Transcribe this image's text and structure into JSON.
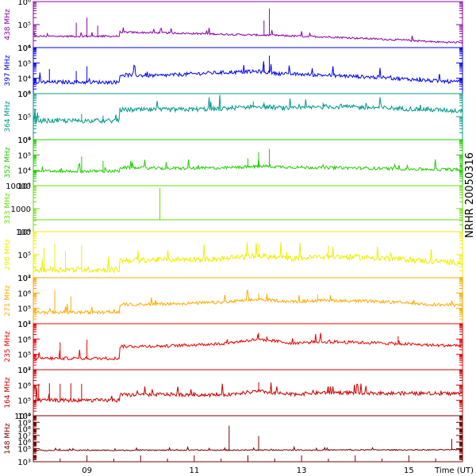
{
  "chart_data": {
    "type": "line",
    "side_title": "NRHR 20050316",
    "xlabel": "Time (UT)",
    "xlim": [
      8.0,
      16.0
    ],
    "x_ticks": [
      {
        "value": 9,
        "label": "09"
      },
      {
        "value": 11,
        "label": "11"
      },
      {
        "value": 13,
        "label": "13"
      },
      {
        "value": 15,
        "label": "15"
      }
    ],
    "yscale": "log",
    "series": [
      {
        "name": "438 MHz",
        "color": "#8800aa",
        "ylim": [
          10000,
          1000000
        ],
        "ticks": [
          {
            "v": 10000,
            "t": "10⁴"
          },
          {
            "v": 100000,
            "t": "10⁵"
          },
          {
            "v": 1000000,
            "t": "10⁶"
          }
        ],
        "x": [
          8.0,
          9.6,
          9.61,
          10.5,
          11.5,
          12.4,
          13.5,
          14.2,
          15.0,
          15.5,
          16.0
        ],
        "y": [
          30000,
          30000,
          45000,
          42000,
          37000,
          33000,
          28000,
          24000,
          20000,
          17000,
          16000
        ],
        "noise": 0.04,
        "spikes": [
          [
            8.8,
            120000
          ],
          [
            9.0,
            200000
          ],
          [
            9.2,
            90000
          ],
          [
            12.4,
            500000
          ],
          [
            12.3,
            150000
          ]
        ]
      },
      {
        "name": "397 MHz",
        "color": "#0000ee",
        "ylim": [
          1000,
          1000000
        ],
        "ticks": [
          {
            "v": 1000,
            "t": "10³"
          },
          {
            "v": 10000,
            "t": "10⁴"
          },
          {
            "v": 100000,
            "t": "10⁵"
          },
          {
            "v": 1000000,
            "t": "10⁶"
          }
        ],
        "x": [
          8.0,
          9.6,
          9.61,
          10.3,
          11.3,
          12.2,
          12.6,
          13.5,
          14.5,
          15.5,
          16.0
        ],
        "y": [
          5000,
          5000,
          15000,
          13000,
          20000,
          25000,
          18000,
          14000,
          10000,
          6000,
          5000
        ],
        "noise": 0.12,
        "spikes": [
          [
            8.3,
            40000
          ],
          [
            8.8,
            30000
          ],
          [
            9.0,
            60000
          ],
          [
            12.4,
            300000
          ],
          [
            12.3,
            80000
          ],
          [
            15.2,
            12000
          ]
        ]
      },
      {
        "name": "364 MHz",
        "color": "#00998a",
        "ylim": [
          10000,
          1000000
        ],
        "ticks": [
          {
            "v": 10000,
            "t": "10⁴"
          },
          {
            "v": 100000,
            "t": "10⁵"
          },
          {
            "v": 1000000,
            "t": "10⁶"
          }
        ],
        "x": [
          8.0,
          9.6,
          9.61,
          10.5,
          11.5,
          12.2,
          12.8,
          13.5,
          14.5,
          15.5,
          16.0
        ],
        "y": [
          60000,
          60000,
          180000,
          180000,
          200000,
          260000,
          200000,
          250000,
          220000,
          180000,
          160000
        ],
        "noise": 0.1,
        "spikes": [
          [
            8.9,
            130000
          ],
          [
            9.3,
            110000
          ],
          [
            12.1,
            450000
          ],
          [
            12.3,
            420000
          ],
          [
            13.4,
            400000
          ]
        ]
      },
      {
        "name": "352 MHz",
        "color": "#22cc00",
        "ylim": [
          1000,
          1000000
        ],
        "ticks": [
          {
            "v": 1000,
            "t": "10³"
          },
          {
            "v": 10000,
            "t": "10⁴"
          },
          {
            "v": 100000,
            "t": "10⁵"
          },
          {
            "v": 1000000,
            "t": "10⁶"
          }
        ],
        "x": [
          8.0,
          9.6,
          9.61,
          10.5,
          11.5,
          12.3,
          13.0,
          14.0,
          15.0,
          16.0
        ],
        "y": [
          8000,
          8000,
          14000,
          12000,
          13000,
          17000,
          14000,
          13000,
          11000,
          10000
        ],
        "noise": 0.1,
        "spikes": [
          [
            8.9,
            80000
          ],
          [
            9.3,
            40000
          ],
          [
            12.2,
            150000
          ],
          [
            12.4,
            250000
          ],
          [
            12.0,
            60000
          ]
        ]
      },
      {
        "name": "333 MHz",
        "color": "#66dd00",
        "ylim": [
          100,
          10000
        ],
        "ticks": [
          {
            "v": 100,
            "t": "100"
          },
          {
            "v": 1000,
            "t": "1000"
          },
          {
            "v": 10000,
            "t": "10000"
          }
        ],
        "x": [
          8.0,
          16.0
        ],
        "y": [
          330,
          330
        ],
        "noise": 0.0,
        "spikes": [
          [
            10.36,
            8000
          ]
        ]
      },
      {
        "name": "298 MHz",
        "color": "#eeee00",
        "ylim": [
          10000,
          1000000
        ],
        "ticks": [
          {
            "v": 10000,
            "t": "10⁴"
          },
          {
            "v": 100000,
            "t": "10⁵"
          },
          {
            "v": 1000000,
            "t": "10⁶"
          }
        ],
        "x": [
          8.0,
          9.6,
          9.61,
          10.5,
          11.5,
          12.2,
          12.8,
          13.5,
          14.5,
          15.5,
          16.0
        ],
        "y": [
          20000,
          20000,
          50000,
          55000,
          60000,
          80000,
          60000,
          75000,
          65000,
          45000,
          40000
        ],
        "noise": 0.12,
        "spikes": [
          [
            8.2,
            200000
          ],
          [
            8.4,
            300000
          ],
          [
            8.6,
            150000
          ],
          [
            8.9,
            250000
          ],
          [
            12.2,
            300000
          ],
          [
            13.5,
            250000
          ]
        ]
      },
      {
        "name": "271 MHz",
        "color": "#ffaa00",
        "ylim": [
          10000,
          10000000
        ],
        "ticks": [
          {
            "v": 10000,
            "t": "10⁴"
          },
          {
            "v": 100000,
            "t": "10⁵"
          },
          {
            "v": 1000000,
            "t": "10⁶"
          },
          {
            "v": 10000000,
            "t": "10⁷"
          }
        ],
        "x": [
          8.0,
          9.6,
          9.61,
          10.5,
          11.5,
          12.2,
          12.8,
          13.5,
          14.5,
          15.5,
          16.0
        ],
        "y": [
          50000,
          50000,
          160000,
          180000,
          220000,
          350000,
          250000,
          300000,
          250000,
          160000,
          140000
        ],
        "noise": 0.1,
        "spikes": [
          [
            8.4,
            1500000
          ],
          [
            8.7,
            600000
          ],
          [
            12.2,
            1000000
          ],
          [
            13.3,
            800000
          ]
        ]
      },
      {
        "name": "235 MHz",
        "color": "#ee0000",
        "ylim": [
          10000,
          10000000
        ],
        "ticks": [
          {
            "v": 10000,
            "t": "10⁴"
          },
          {
            "v": 100000,
            "t": "10⁵"
          },
          {
            "v": 1000000,
            "t": "10⁶"
          },
          {
            "v": 10000000,
            "t": "10⁷"
          }
        ],
        "x": [
          8.0,
          9.6,
          9.61,
          10.5,
          11.5,
          12.2,
          12.8,
          13.5,
          14.5,
          15.5,
          16.0
        ],
        "y": [
          50000,
          50000,
          300000,
          320000,
          450000,
          900000,
          500000,
          600000,
          500000,
          350000,
          350000
        ],
        "noise": 0.1,
        "spikes": [
          [
            8.5,
            600000
          ],
          [
            9.0,
            900000
          ],
          [
            12.2,
            2500000
          ],
          [
            14.8,
            1500000
          ]
        ]
      },
      {
        "name": "164 MHz",
        "color": "#cc0000",
        "ylim": [
          10000,
          10000000
        ],
        "ticks": [
          {
            "v": 10000,
            "t": "10⁴"
          },
          {
            "v": 100000,
            "t": "10⁵"
          },
          {
            "v": 1000000,
            "t": "10⁶"
          },
          {
            "v": 10000000,
            "t": "10⁷"
          }
        ],
        "x": [
          8.0,
          9.6,
          9.61,
          10.5,
          11.5,
          12.2,
          12.8,
          13.5,
          14.5,
          15.5,
          16.0
        ],
        "y": [
          90000,
          90000,
          200000,
          220000,
          200000,
          350000,
          220000,
          300000,
          260000,
          250000,
          250000
        ],
        "noise": 0.12,
        "spikes": [
          [
            8.1,
            1200000
          ],
          [
            8.3,
            1300000
          ],
          [
            8.5,
            1200000
          ],
          [
            8.7,
            1300000
          ],
          [
            8.9,
            1200000
          ],
          [
            12.2,
            1500000
          ],
          [
            13.5,
            800000
          ]
        ]
      },
      {
        "name": "148 MHz",
        "color": "#770000",
        "ylim": [
          1000,
          10000000000
        ],
        "ticks": [
          {
            "v": 1000,
            "t": "10³"
          },
          {
            "v": 100000,
            "t": "10⁵"
          },
          {
            "v": 1000000,
            "t": "10⁶"
          },
          {
            "v": 10000000,
            "t": "10⁷"
          },
          {
            "v": 100000000,
            "t": "10⁸"
          },
          {
            "v": 1000000000,
            "t": "10⁹"
          },
          {
            "v": 10000000000,
            "t": "10¹⁰"
          }
        ],
        "x": [
          8.0,
          16.0
        ],
        "y": [
          50000,
          60000
        ],
        "noise": 0.08,
        "spikes": [
          [
            11.65,
            300000000
          ],
          [
            12.2,
            8000000
          ],
          [
            15.8,
            3000000
          ]
        ]
      }
    ]
  }
}
